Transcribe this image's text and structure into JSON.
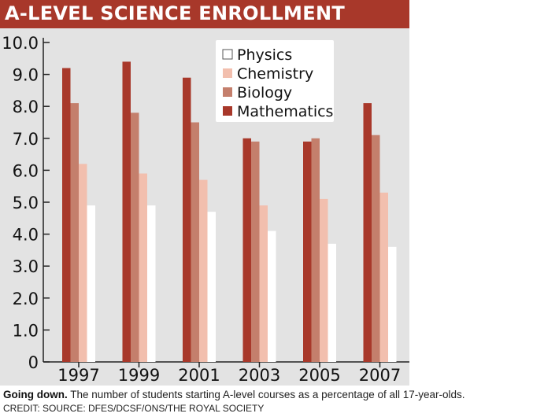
{
  "colors": {
    "title_bar": "#a8382a",
    "plot_bg": "#e3e3e3",
    "physics": "#ffffff",
    "chemistry": "#f2bfae",
    "biology": "#c47f6c",
    "mathematics": "#a8382a"
  },
  "chart_data": {
    "type": "bar",
    "title": "A-LEVEL SCIENCE ENROLLMENT",
    "xlabel": "",
    "ylabel": "",
    "categories": [
      "1997",
      "1999",
      "2001",
      "2003",
      "2005",
      "2007"
    ],
    "ylim": [
      0,
      10
    ],
    "yticks": [
      "0",
      "1.0",
      "2.0",
      "3.0",
      "4.0",
      "5.0",
      "6.0",
      "7.0",
      "8.0",
      "9.0",
      "10.0"
    ],
    "grid": false,
    "legend_position": "top-right",
    "series": [
      {
        "name": "Mathematics",
        "values": [
          9.2,
          9.4,
          8.9,
          7.0,
          6.9,
          8.1
        ]
      },
      {
        "name": "Biology",
        "values": [
          8.1,
          7.8,
          7.5,
          6.9,
          7.0,
          7.1
        ]
      },
      {
        "name": "Chemistry",
        "values": [
          6.2,
          5.9,
          5.7,
          4.9,
          5.1,
          5.3
        ]
      },
      {
        "name": "Physics",
        "values": [
          4.9,
          4.9,
          4.7,
          4.1,
          3.7,
          3.6
        ]
      }
    ],
    "legend_order": [
      "Physics",
      "Chemistry",
      "Biology",
      "Mathematics"
    ]
  },
  "caption": {
    "lead": "Going down.",
    "text": " The number of students starting A-level courses as a percentage of all 17-year-olds."
  },
  "credit": "CREDIT: SOURCE: DFES/DCSF/ONS/THE ROYAL SOCIETY"
}
